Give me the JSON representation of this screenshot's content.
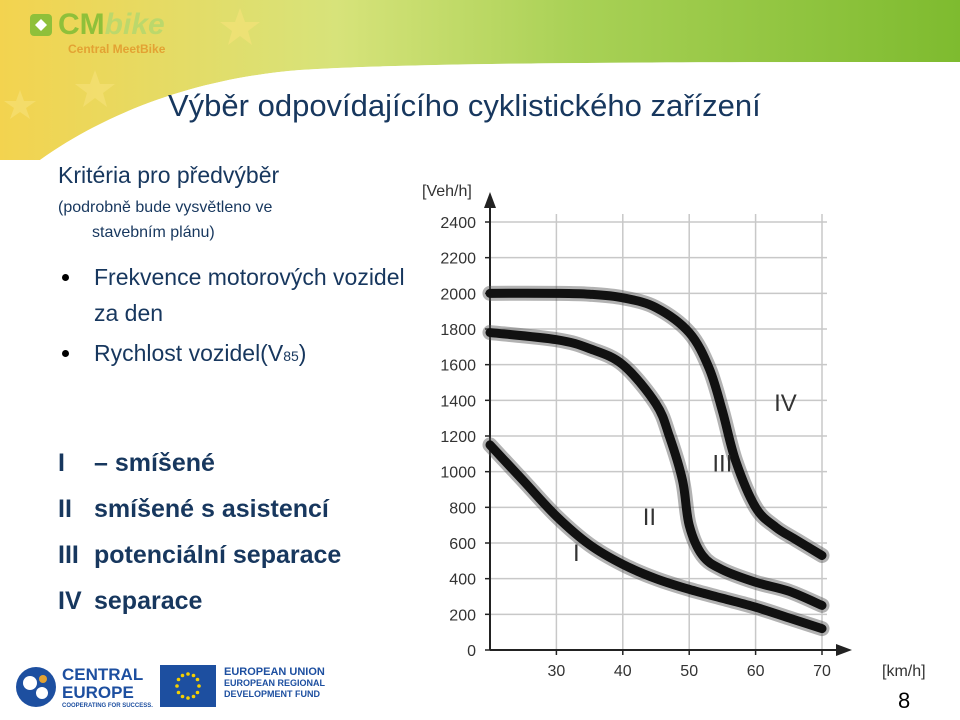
{
  "header": {
    "logo_cm": "CM",
    "logo_bike": "bike",
    "logo_sub": "Central MeetBike"
  },
  "title": "Výběr odpovídajícího cyklistického zařízení",
  "criteria": {
    "title": "Kritéria pro předvýběr",
    "note_line1": "(podrobně bude vysvětleno ve",
    "note_line2": "stavebním plánu)",
    "bullets": [
      {
        "text": "Frekvence motorových vozidel za den"
      },
      {
        "text": "Rychlost vozidel(V",
        "sub": "85",
        "tail": ")"
      }
    ]
  },
  "legend": [
    {
      "num": "I",
      "text": "– smíšené"
    },
    {
      "num": "II",
      "text": "smíšené s asistencí"
    },
    {
      "num": "III",
      "text": "potenciální separace"
    },
    {
      "num": "IV",
      "text": "separace"
    }
  ],
  "chart_data": {
    "type": "line",
    "ylabel": "[Veh/h]",
    "xlabel": "[km/h]",
    "xlim": [
      20,
      70
    ],
    "ylim": [
      0,
      2400
    ],
    "xticks": [
      30,
      40,
      50,
      60,
      70
    ],
    "yticks": [
      0,
      200,
      400,
      600,
      800,
      1000,
      1200,
      1400,
      1600,
      1800,
      2000,
      2200,
      2400
    ],
    "grid": true,
    "color": "#111111",
    "series": [
      {
        "name": "I",
        "x": [
          20,
          25,
          30,
          35,
          40,
          45,
          50,
          55,
          60,
          65,
          70
        ],
        "y": [
          1150,
          950,
          750,
          590,
          480,
          400,
          340,
          290,
          240,
          180,
          120
        ]
      },
      {
        "name": "II",
        "x": [
          20,
          30,
          35,
          40,
          45,
          47,
          49,
          50,
          52,
          55,
          60,
          65,
          70
        ],
        "y": [
          1780,
          1740,
          1690,
          1600,
          1380,
          1200,
          950,
          700,
          530,
          450,
          380,
          330,
          250
        ]
      },
      {
        "name": "III",
        "x": [
          20,
          30,
          35,
          40,
          45,
          50,
          53,
          55,
          57,
          60,
          63,
          66,
          70
        ],
        "y": [
          2000,
          2000,
          1995,
          1975,
          1920,
          1780,
          1580,
          1340,
          1060,
          800,
          690,
          620,
          530
        ]
      },
      {
        "name": "IV",
        "x": [],
        "y": []
      }
    ],
    "region_labels": [
      {
        "text": "I",
        "x": 33,
        "y": 500
      },
      {
        "text": "II",
        "x": 44,
        "y": 700
      },
      {
        "text": "III",
        "x": 55,
        "y": 1000
      },
      {
        "text": "IV",
        "x": 64.5,
        "y": 1340
      }
    ]
  },
  "footer": {
    "ce_line1": "CENTRAL",
    "ce_line2": "EUROPE",
    "ce_line3": "COOPERATING FOR SUCCESS.",
    "eu_line1": "EUROPEAN UNION",
    "eu_line2": "EUROPEAN REGIONAL",
    "eu_line3": "DEVELOPMENT FUND",
    "page_number": "8"
  }
}
